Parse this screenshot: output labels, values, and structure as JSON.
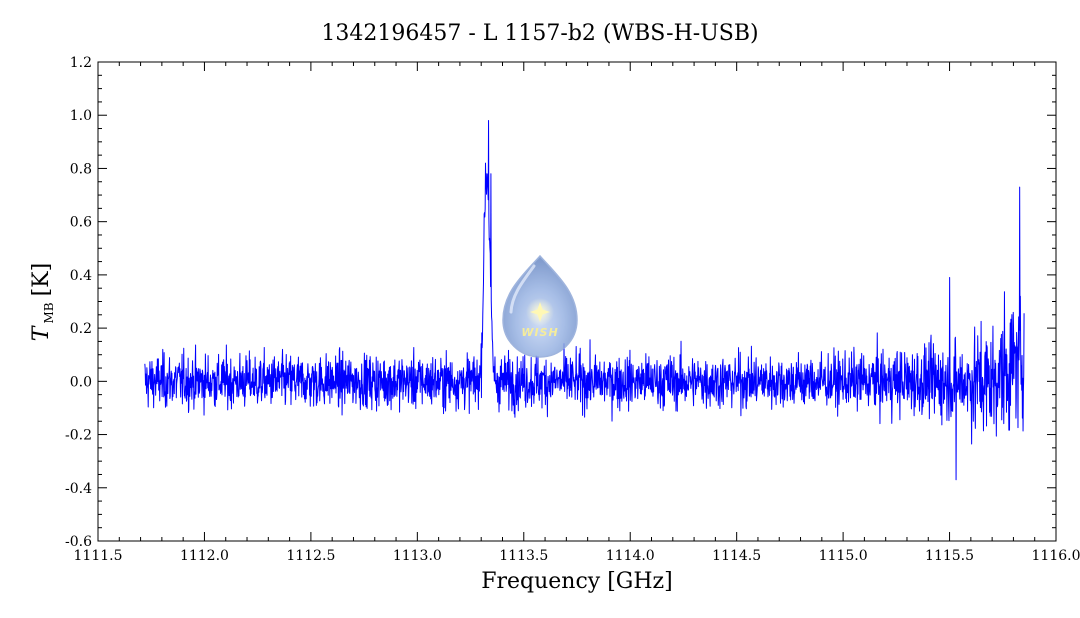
{
  "chart_data": {
    "type": "line",
    "title": "1342196457 - L 1157-b2 (WBS-H-USB)",
    "xlabel": "Frequency [GHz]",
    "ylabel_main": "T",
    "ylabel_sub": "MB",
    "ylabel_unit": "[K]",
    "xlim": [
      1111.5,
      1116.0
    ],
    "ylim": [
      -0.6,
      1.2
    ],
    "x_ticks": [
      "1111.5",
      "1112.0",
      "1112.5",
      "1113.0",
      "1113.5",
      "1114.0",
      "1114.5",
      "1115.0",
      "1115.5",
      "1116.0"
    ],
    "y_ticks": [
      "-0.6",
      "-0.4",
      "-0.2",
      "0.0",
      "0.2",
      "0.4",
      "0.6",
      "0.8",
      "1.0",
      "1.2"
    ],
    "grid": false,
    "series": [
      {
        "color": "#0000ff",
        "x_range": [
          1111.72,
          1115.85
        ],
        "baseline_noise_rms": 0.07,
        "features": [
          {
            "x": 1113.32,
            "y": 0.82
          },
          {
            "x": 1113.335,
            "y": 0.98
          },
          {
            "x": 1113.345,
            "y": 0.78
          },
          {
            "x": 1115.5,
            "y": 0.39
          },
          {
            "x": 1115.53,
            "y": -0.37
          },
          {
            "x": 1115.83,
            "y": 0.73
          }
        ]
      }
    ]
  },
  "logo": {
    "text": "WISH",
    "icon": "wish-droplet-star-icon"
  }
}
